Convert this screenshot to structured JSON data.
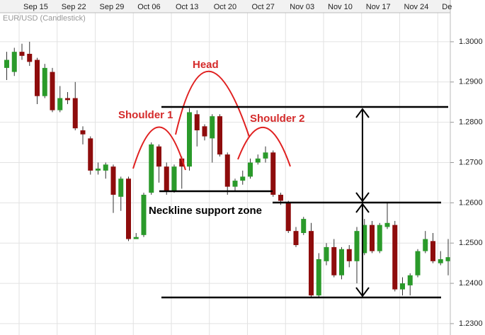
{
  "chart_data": {
    "type": "candlestick",
    "title": "EUR/USD (Candlestick)",
    "categories": [
      null,
      null,
      "Sep 15",
      null,
      null,
      null,
      null,
      "Sep 22",
      null,
      null,
      null,
      null,
      "Sep 29",
      null,
      null,
      null,
      null,
      "Oct 06",
      null,
      null,
      null,
      null,
      "Oct 13",
      null,
      null,
      null,
      null,
      "Oct 20",
      null,
      null,
      null,
      null,
      "Oct 27",
      null,
      null,
      null,
      null,
      "Nov 03",
      null,
      null,
      null,
      null,
      "Nov 10",
      null,
      null,
      null,
      null,
      "Nov 17",
      null,
      null,
      null,
      null,
      "Nov 24",
      null,
      null,
      null,
      null,
      "De",
      null
    ],
    "open": [
      1.2935,
      1.2925,
      1.2975,
      1.297,
      1.2955,
      1.2865,
      1.2925,
      1.283,
      1.286,
      1.286,
      1.278,
      1.276,
      1.268,
      1.268,
      1.269,
      1.2615,
      1.266,
      1.251,
      1.252,
      1.2625,
      1.274,
      1.269,
      1.263,
      1.271,
      1.269,
      1.282,
      1.279,
      1.276,
      1.2815,
      1.272,
      1.264,
      1.2655,
      1.2665,
      1.27,
      1.271,
      1.2725,
      1.262,
      1.26,
      1.253,
      1.2525,
      1.253,
      1.237,
      1.2455,
      1.249,
      1.242,
      1.2485,
      1.2455,
      1.2475,
      1.2545,
      1.248,
      1.254,
      1.2545,
      1.2385,
      1.2395,
      1.242,
      1.248,
      1.2505,
      1.245,
      1.2455
    ],
    "high": [
      1.2975,
      1.2985,
      1.2995,
      1.3,
      1.296,
      1.2945,
      1.2935,
      1.289,
      1.2875,
      1.29,
      1.279,
      1.2765,
      1.27,
      1.27,
      1.2695,
      1.2665,
      1.2665,
      1.2525,
      1.2625,
      1.275,
      1.2745,
      1.27,
      1.2695,
      1.2715,
      1.2835,
      1.283,
      1.2795,
      1.282,
      1.282,
      1.2725,
      1.266,
      1.268,
      1.271,
      1.272,
      1.274,
      1.273,
      1.2625,
      1.2605,
      1.254,
      1.2565,
      1.255,
      1.2475,
      1.25,
      1.251,
      1.249,
      1.2495,
      1.254,
      1.256,
      1.2555,
      1.255,
      1.26,
      1.2555,
      1.2415,
      1.2425,
      1.2485,
      1.253,
      1.2525,
      1.248,
      1.251
    ],
    "low": [
      1.2905,
      1.2915,
      1.2955,
      1.294,
      1.2845,
      1.286,
      1.2825,
      1.2825,
      1.2845,
      1.278,
      1.2745,
      1.267,
      1.267,
      1.266,
      1.2575,
      1.258,
      1.2505,
      1.251,
      1.2515,
      1.262,
      1.265,
      1.262,
      1.2625,
      1.2635,
      1.268,
      1.274,
      1.2755,
      1.27,
      1.2715,
      1.262,
      1.263,
      1.2645,
      1.266,
      1.2695,
      1.27,
      1.2615,
      1.2595,
      1.2525,
      1.249,
      1.252,
      1.2365,
      1.2365,
      1.2445,
      1.2415,
      1.241,
      1.244,
      1.24,
      1.247,
      1.2475,
      1.2475,
      1.2535,
      1.238,
      1.237,
      1.237,
      1.2415,
      1.2475,
      1.245,
      1.2445,
      1.242
    ],
    "close": [
      1.2955,
      1.2975,
      1.2965,
      1.295,
      1.2865,
      1.2935,
      1.283,
      1.286,
      1.2855,
      1.2785,
      1.277,
      1.268,
      1.2685,
      1.2695,
      1.262,
      1.266,
      1.251,
      1.2515,
      1.262,
      1.2745,
      1.269,
      1.263,
      1.269,
      1.269,
      1.2825,
      1.278,
      1.2765,
      1.2815,
      1.272,
      1.264,
      1.2655,
      1.2665,
      1.27,
      1.271,
      1.2725,
      1.262,
      1.2605,
      1.253,
      1.2495,
      1.256,
      1.237,
      1.246,
      1.249,
      1.242,
      1.2485,
      1.2455,
      1.253,
      1.2545,
      1.248,
      1.2545,
      1.255,
      1.2385,
      1.24,
      1.242,
      1.248,
      1.251,
      1.2455,
      1.246,
      1.2465
    ],
    "up_color": "#2a9a2a",
    "down_color": "#8e0c0c",
    "ylim": [
      1.2277,
      1.3072
    ],
    "yticks": [
      {
        "value": 1.23,
        "label": "1.2300"
      },
      {
        "value": 1.24,
        "label": "1.2400"
      },
      {
        "value": 1.25,
        "label": "1.2500"
      },
      {
        "value": 1.26,
        "label": "1.2600"
      },
      {
        "value": 1.27,
        "label": "1.2700"
      },
      {
        "value": 1.28,
        "label": "1.2800"
      },
      {
        "value": 1.29,
        "label": "1.2900"
      },
      {
        "value": 1.3,
        "label": "1.3000"
      }
    ],
    "grid": true,
    "annotations": [
      "Shoulder 1",
      "Head",
      "Shoulder 2",
      "Neckline support zone"
    ]
  }
}
